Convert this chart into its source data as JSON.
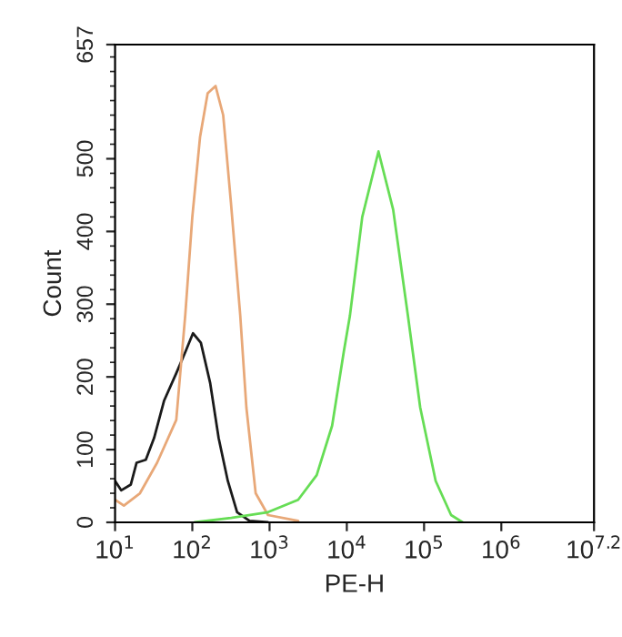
{
  "chart_data": {
    "type": "line",
    "xlabel": "PE-H",
    "ylabel": "Count",
    "log": "x",
    "grid": false,
    "legend": false,
    "marker": "none",
    "line_style": "solid",
    "xlim": [
      10,
      15848932
    ],
    "xticks": [
      {
        "value": 10,
        "label": "10$^{1}$"
      },
      {
        "value": 100,
        "label": "10$^{2}$"
      },
      {
        "value": 1000,
        "label": "10$^{3}$"
      },
      {
        "value": 10000,
        "label": "10$^{4}$"
      },
      {
        "value": 100000,
        "label": "10$^{5}$"
      },
      {
        "value": 1000000,
        "label": "10$^{6}$"
      },
      {
        "value": 15848932,
        "label": "10$^{7.2}$"
      }
    ],
    "ylim": [
      0,
      657
    ],
    "yticks": [
      0,
      100,
      200,
      300,
      400,
      500,
      657
    ],
    "series": [
      {
        "color": "#1a1a1a",
        "x": [
          10,
          12,
          16,
          19,
          25,
          32,
          43,
          62,
          81,
          102,
          129,
          170,
          219,
          288,
          380,
          550,
          955
        ],
        "values": [
          57,
          44,
          52,
          82,
          86,
          116,
          167,
          205,
          234,
          260,
          247,
          192,
          116,
          57,
          14,
          2,
          0
        ]
      },
      {
        "color": "#e8a878",
        "x": [
          10,
          13,
          21,
          35,
          62,
          81,
          100,
          126,
          158,
          200,
          251,
          316,
          417,
          501,
          661,
          955,
          2344
        ],
        "values": [
          31,
          23,
          40,
          82,
          141,
          285,
          420,
          530,
          590,
          600,
          560,
          440,
          285,
          158,
          40,
          10,
          2
        ]
      },
      {
        "color": "#66dd55",
        "x": [
          107,
          316,
          955,
          2344,
          4074,
          6457,
          9120,
          10965,
          15849,
          25704,
          39811,
          61660,
          89125,
          141254,
          223872,
          316228
        ],
        "values": [
          0,
          6,
          14,
          31,
          65,
          133,
          234,
          284,
          420,
          510,
          430,
          285,
          158,
          57,
          10,
          0
        ]
      }
    ]
  }
}
